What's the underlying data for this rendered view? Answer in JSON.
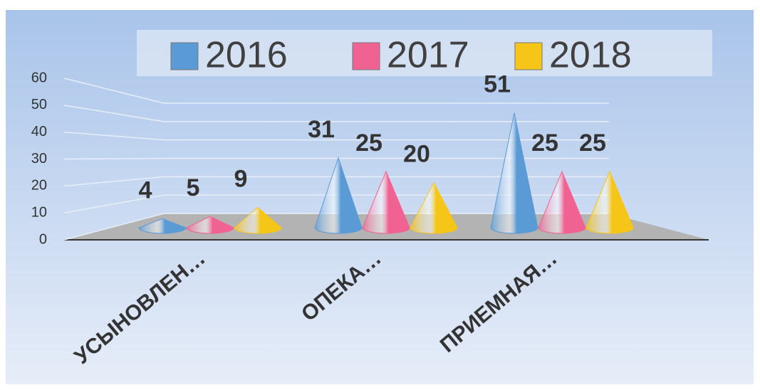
{
  "chart_data": {
    "type": "bar",
    "categories": [
      "УСЫНОВЛЕН…",
      "ОПЕКА…",
      "ПРИЕМНАЯ…"
    ],
    "series": [
      {
        "name": "2016",
        "color": "#5b9bd5",
        "values": [
          4,
          31,
          51
        ]
      },
      {
        "name": "2017",
        "color": "#f06292",
        "values": [
          5,
          25,
          25
        ]
      },
      {
        "name": "2018",
        "color": "#f5c518",
        "values": [
          9,
          20,
          25
        ]
      }
    ],
    "ylim": [
      0,
      60
    ],
    "yticks": [
      0,
      10,
      20,
      30,
      40,
      50,
      60
    ],
    "grid": true,
    "legend": "top"
  }
}
